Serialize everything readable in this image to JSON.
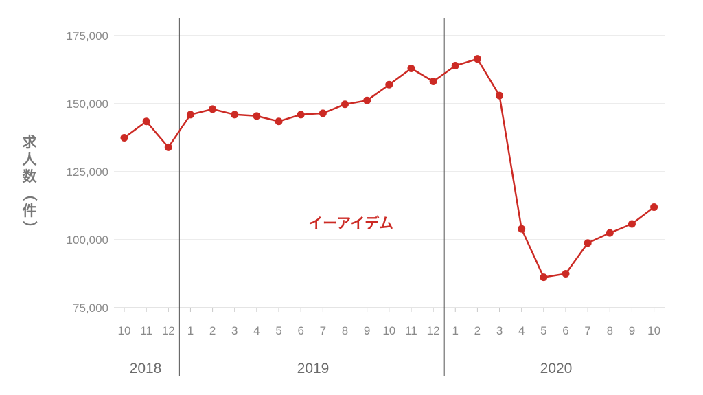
{
  "chart_data": {
    "type": "line",
    "ylabel": "求人数（件）",
    "ylim": [
      75000,
      175000
    ],
    "yticks": [
      {
        "value": 175000,
        "label": "175,000"
      },
      {
        "value": 150000,
        "label": "150,000"
      },
      {
        "value": 125000,
        "label": "125,000"
      },
      {
        "value": 100000,
        "label": "100,000"
      },
      {
        "value": 75000,
        "label": "75,000"
      }
    ],
    "categories": [
      "10",
      "11",
      "12",
      "1",
      "2",
      "3",
      "4",
      "5",
      "6",
      "7",
      "8",
      "9",
      "10",
      "11",
      "12",
      "1",
      "2",
      "3",
      "4",
      "5",
      "6",
      "7",
      "8",
      "9",
      "10"
    ],
    "year_groups": [
      {
        "label": "2018",
        "start": 0,
        "end": 2
      },
      {
        "label": "2019",
        "start": 3,
        "end": 14
      },
      {
        "label": "2020",
        "start": 15,
        "end": 24
      }
    ],
    "series": [
      {
        "name": "イーアイデム",
        "color": "#cc2a24",
        "values": [
          137500,
          143500,
          134000,
          146000,
          148000,
          146000,
          145500,
          143500,
          146000,
          146500,
          149800,
          151200,
          157000,
          163000,
          158200,
          164000,
          166500,
          153000,
          104000,
          86200,
          87500,
          98800,
          102500,
          105800,
          112000
        ]
      }
    ],
    "grid": true,
    "colors": {
      "grid": "#d9d9d9",
      "tick_text": "#8a8a8a",
      "year_text": "#6b6b6b",
      "divider": "#555555"
    }
  }
}
